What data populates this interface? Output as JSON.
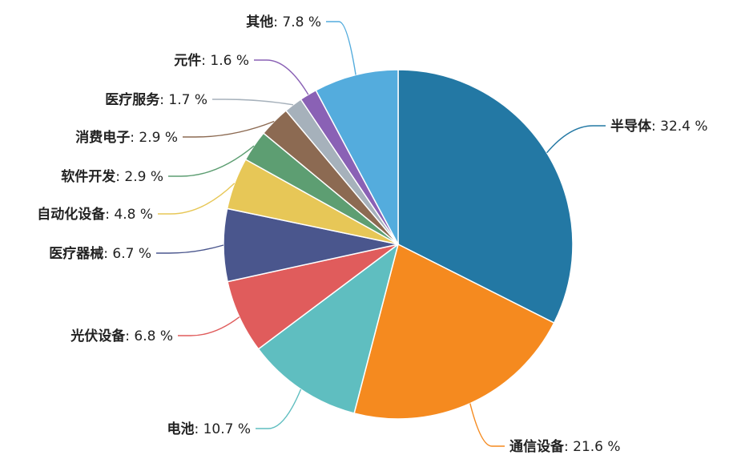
{
  "chart_data": {
    "type": "pie",
    "title": "",
    "legend": "none",
    "start_angle_deg": 90,
    "direction": "clockwise",
    "slices": [
      {
        "name": "半导体",
        "value": 32.4,
        "label": "32.4 %",
        "color": "#2378a4"
      },
      {
        "name": "通信设备",
        "value": 21.6,
        "label": "21.6 %",
        "color": "#f58a1f"
      },
      {
        "name": "电池",
        "value": 10.7,
        "label": "10.7 %",
        "color": "#5fbec0"
      },
      {
        "name": "光伏设备",
        "value": 6.8,
        "label": "6.8 %",
        "color": "#e05c5c"
      },
      {
        "name": "医疗器械",
        "value": 6.7,
        "label": "6.7 %",
        "color": "#4a568d"
      },
      {
        "name": "自动化设备",
        "value": 4.8,
        "label": "4.8 %",
        "color": "#e7c757"
      },
      {
        "name": "软件开发",
        "value": 2.9,
        "label": "2.9 %",
        "color": "#5d9e72"
      },
      {
        "name": "消费电子",
        "value": 2.9,
        "label": "2.9 %",
        "color": "#8c6a52"
      },
      {
        "name": "医疗服务",
        "value": 1.7,
        "label": "1.7 %",
        "color": "#a6b1bb"
      },
      {
        "name": "元件",
        "value": 1.6,
        "label": "1.6 %",
        "color": "#8a61b5"
      },
      {
        "name": "其他",
        "value": 7.8,
        "label": "7.8 %",
        "color": "#54acdd"
      }
    ]
  }
}
